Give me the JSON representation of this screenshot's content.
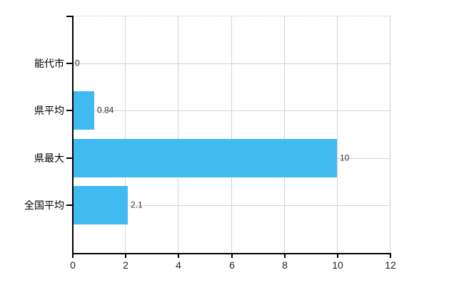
{
  "chart_data": {
    "type": "bar",
    "orientation": "horizontal",
    "categories": [
      "能代市",
      "県平均",
      "県最大",
      "全国平均"
    ],
    "values": [
      0,
      0.84,
      10,
      2.1
    ],
    "value_labels": [
      "0",
      "0.84",
      "10",
      "2.1"
    ],
    "xlim": [
      0,
      12
    ],
    "x_tick_values": [
      0,
      2,
      4,
      6,
      8,
      10,
      12
    ],
    "x_ticks": [
      "0",
      "2",
      "4",
      "6",
      "8",
      "10",
      "12"
    ],
    "grid": true,
    "legend_position": "none",
    "bar_color": "#41baef",
    "gridline_color": "#d4d4d4",
    "top_border_color": "#cfcfcf",
    "axis_color": "#000000",
    "category_label_color": "#000000",
    "tick_label_color": "#222222",
    "value_label_color": "#333333"
  }
}
